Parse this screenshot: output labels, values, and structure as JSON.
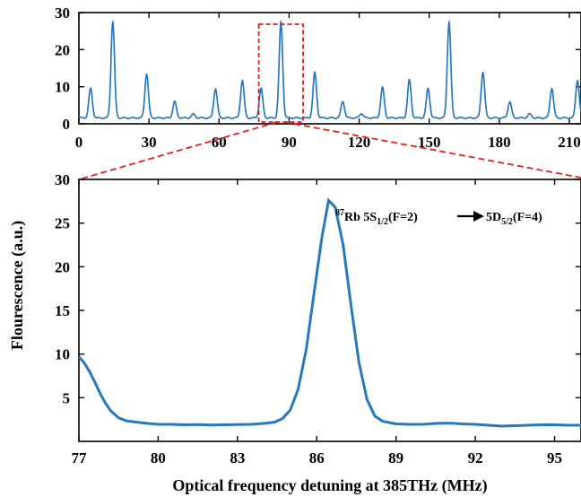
{
  "chart_data": [
    {
      "type": "line",
      "panel": "overview",
      "xlim": [
        0,
        215
      ],
      "ylim": [
        0,
        30
      ],
      "x_ticks": [
        0,
        30,
        60,
        90,
        120,
        150,
        180,
        210
      ],
      "y_ticks": [
        0,
        10,
        20,
        30
      ],
      "baseline": 1.6,
      "peaks": [
        {
          "x": 5,
          "y": 9.5
        },
        {
          "x": 14.5,
          "y": 27.5
        },
        {
          "x": 29,
          "y": 13.5
        },
        {
          "x": 41,
          "y": 6
        },
        {
          "x": 49,
          "y": 2.6
        },
        {
          "x": 58.5,
          "y": 9.5
        },
        {
          "x": 70,
          "y": 11.7
        },
        {
          "x": 78,
          "y": 9.5
        },
        {
          "x": 86.5,
          "y": 27.5
        },
        {
          "x": 101,
          "y": 13.8
        },
        {
          "x": 113,
          "y": 6
        },
        {
          "x": 121,
          "y": 2.8
        },
        {
          "x": 130,
          "y": 9.8
        },
        {
          "x": 141.5,
          "y": 11.8
        },
        {
          "x": 149.5,
          "y": 9.5
        },
        {
          "x": 158.5,
          "y": 27.5
        },
        {
          "x": 173,
          "y": 14
        },
        {
          "x": 184.5,
          "y": 6
        },
        {
          "x": 193,
          "y": 2.6
        },
        {
          "x": 202.5,
          "y": 9.6
        },
        {
          "x": 213.5,
          "y": 11.8
        }
      ],
      "zoom_box": {
        "x0": 77,
        "x1": 96,
        "y0": 0,
        "y1": 30
      }
    },
    {
      "type": "line",
      "panel": "zoom",
      "xlim": [
        77,
        96
      ],
      "ylim": [
        0,
        30
      ],
      "x_ticks": [
        77,
        80,
        83,
        86,
        89,
        92,
        95
      ],
      "y_ticks": [
        5,
        10,
        15,
        20,
        25,
        30
      ],
      "xlabel": "Optical frequency detuning at 385THz (MHz)",
      "ylabel": "Flourescence (a.u.)",
      "points": [
        [
          77.0,
          9.7
        ],
        [
          77.2,
          9.0
        ],
        [
          77.4,
          8.0
        ],
        [
          77.6,
          6.8
        ],
        [
          77.8,
          5.5
        ],
        [
          78.0,
          4.4
        ],
        [
          78.2,
          3.5
        ],
        [
          78.5,
          2.7
        ],
        [
          78.8,
          2.35
        ],
        [
          79.2,
          2.2
        ],
        [
          79.6,
          2.05
        ],
        [
          80.0,
          1.95
        ],
        [
          80.5,
          1.95
        ],
        [
          81.0,
          1.9
        ],
        [
          81.5,
          1.92
        ],
        [
          82.0,
          1.88
        ],
        [
          82.5,
          1.9
        ],
        [
          83.0,
          1.92
        ],
        [
          83.5,
          1.95
        ],
        [
          84.0,
          2.05
        ],
        [
          84.4,
          2.2
        ],
        [
          84.7,
          2.6
        ],
        [
          85.0,
          3.6
        ],
        [
          85.3,
          6.0
        ],
        [
          85.6,
          10.5
        ],
        [
          85.9,
          17.0
        ],
        [
          86.2,
          23.5
        ],
        [
          86.45,
          27.6
        ],
        [
          86.7,
          26.8
        ],
        [
          87.0,
          22.5
        ],
        [
          87.3,
          15.5
        ],
        [
          87.6,
          9.0
        ],
        [
          87.9,
          4.8
        ],
        [
          88.2,
          2.9
        ],
        [
          88.5,
          2.3
        ],
        [
          89.0,
          2.0
        ],
        [
          89.5,
          1.95
        ],
        [
          90.0,
          1.95
        ],
        [
          90.5,
          2.05
        ],
        [
          91.0,
          2.1
        ],
        [
          91.5,
          2.0
        ],
        [
          92.0,
          1.95
        ],
        [
          92.5,
          1.85
        ],
        [
          93.0,
          1.75
        ],
        [
          93.5,
          1.8
        ],
        [
          94.0,
          1.85
        ],
        [
          94.5,
          1.9
        ],
        [
          95.0,
          1.9
        ],
        [
          95.5,
          1.85
        ],
        [
          96.0,
          1.85
        ]
      ],
      "annotation": {
        "isotope_mass": "87",
        "element": "Rb 5S",
        "lower_sub": "1/2",
        "lower_f": "(F=2)",
        "upper": "5D",
        "upper_sub": "5/2",
        "upper_f": "(F=4)"
      }
    }
  ],
  "colors": {
    "line": "#2878be",
    "zoom": "#e02020",
    "axes": "#000000"
  }
}
